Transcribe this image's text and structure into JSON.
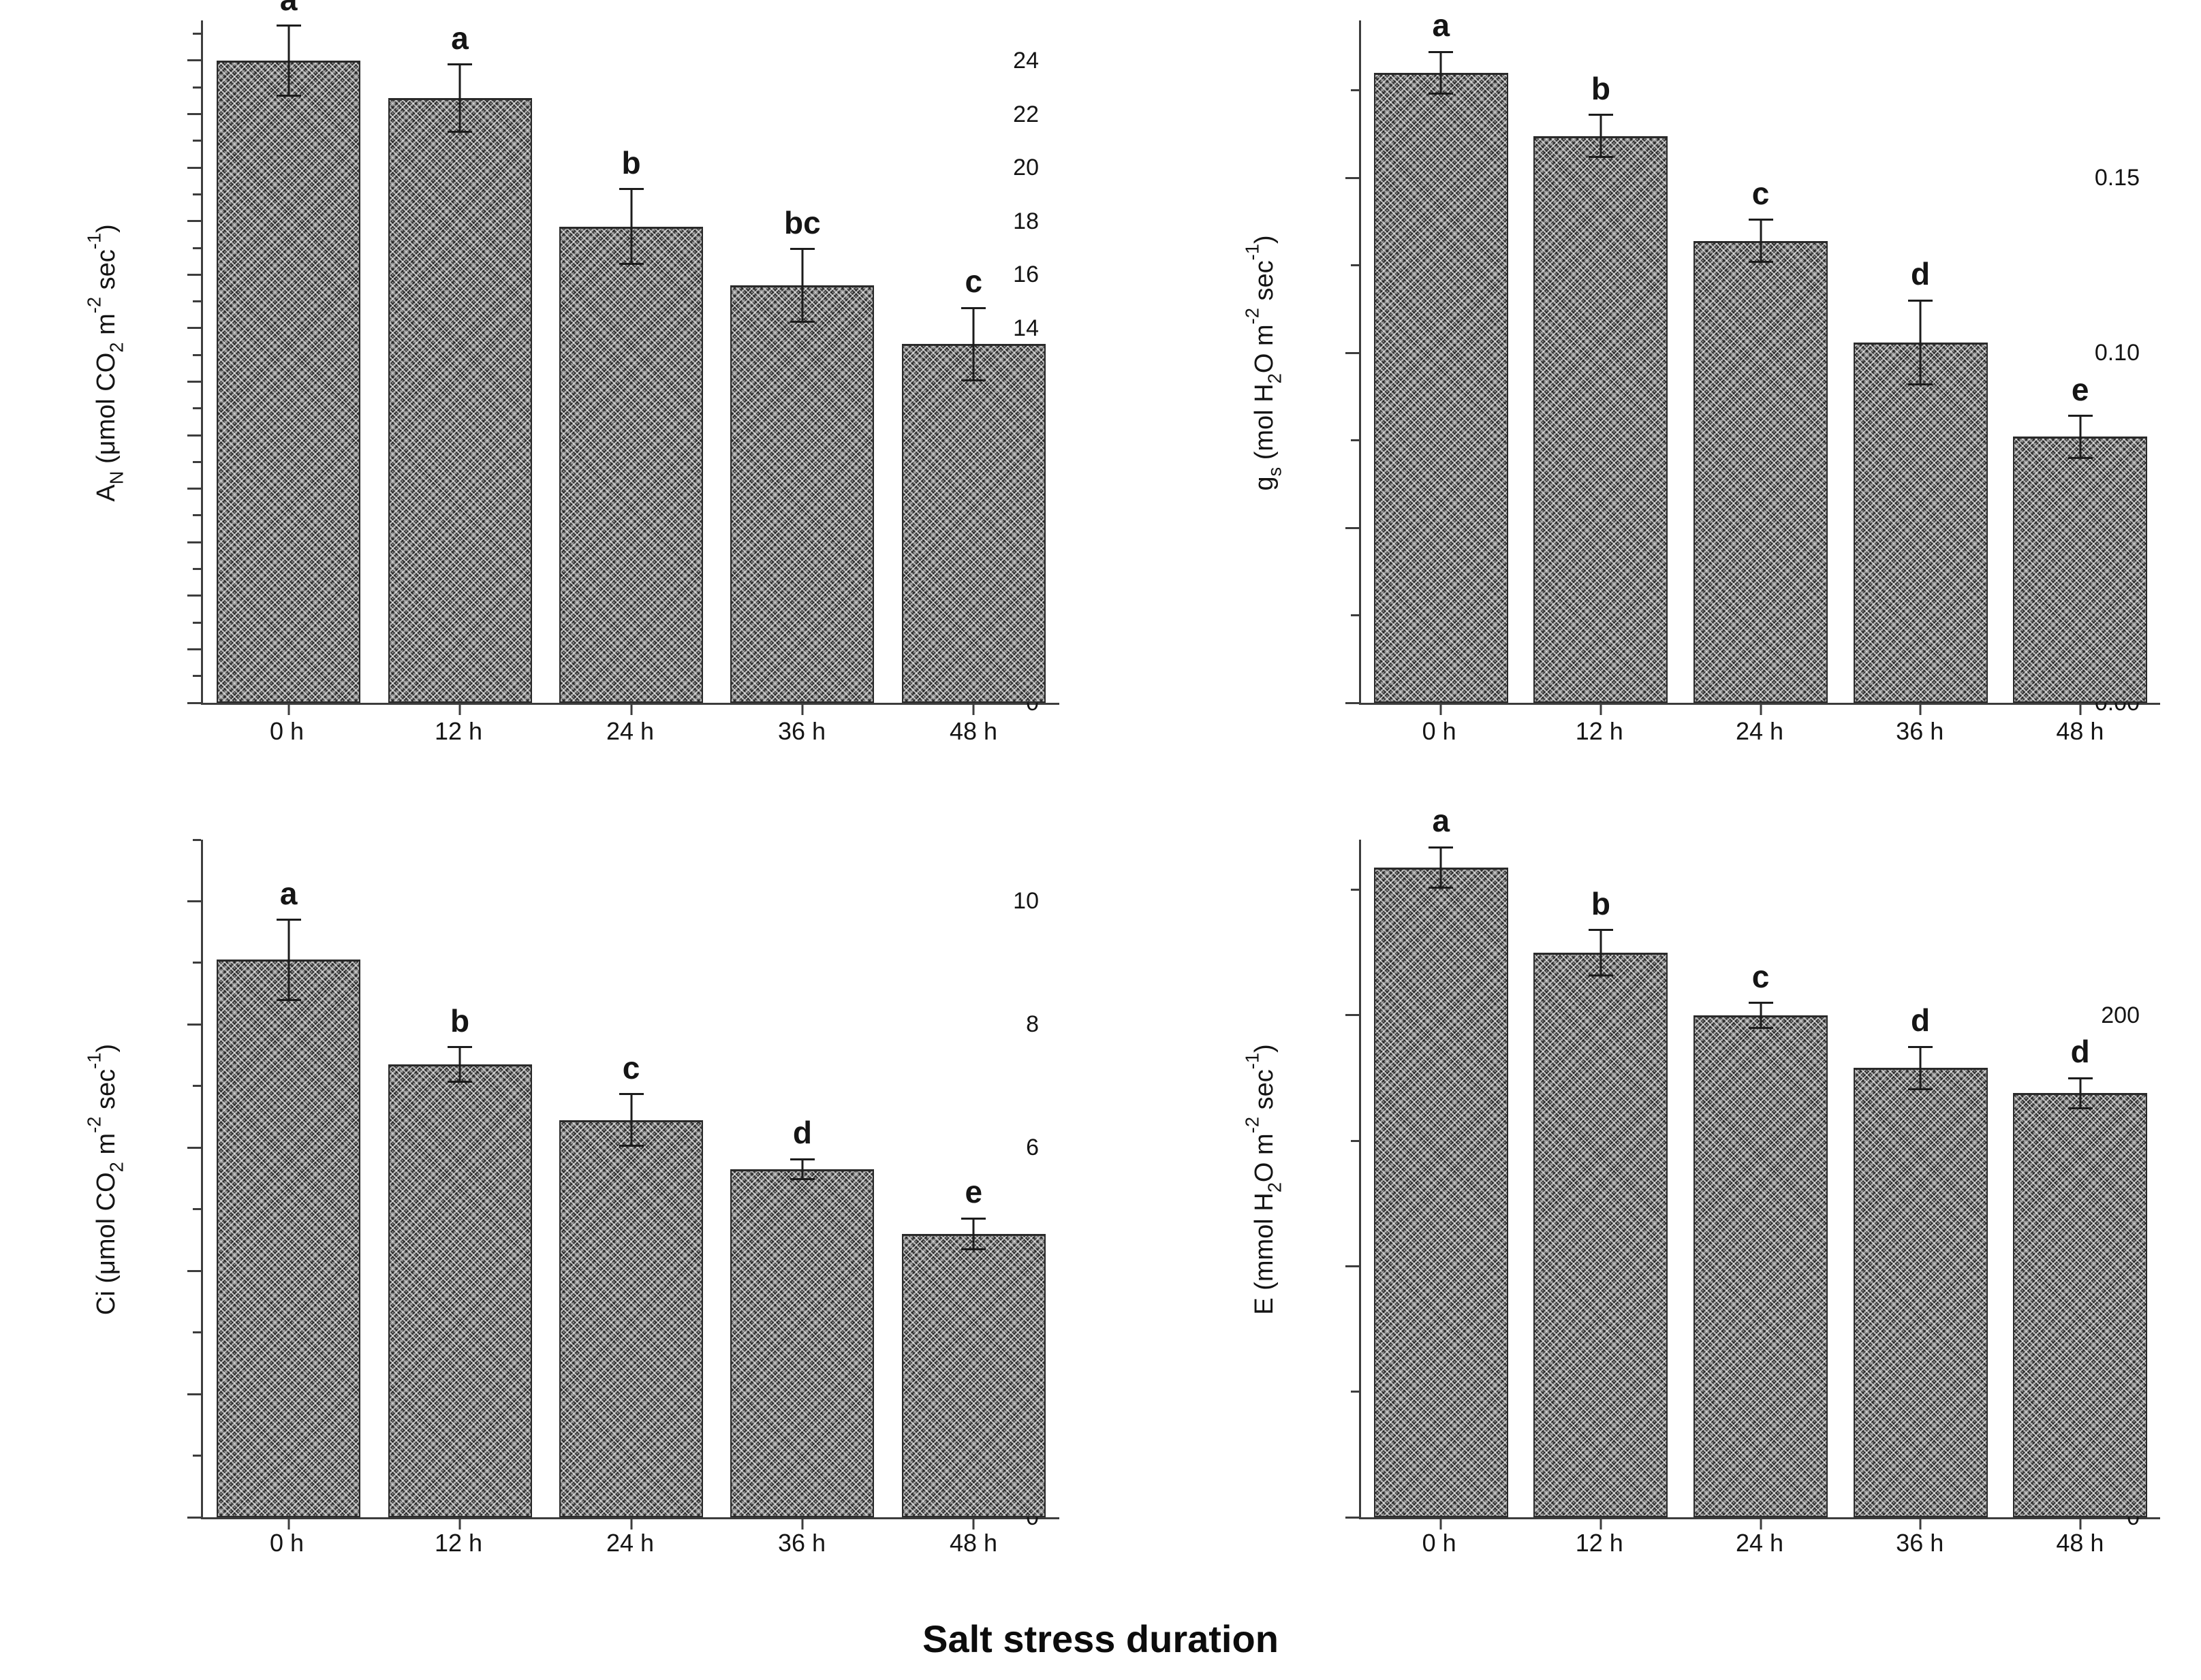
{
  "figure": {
    "xlabel": "Salt stress duration"
  },
  "colors": {
    "bar_fill": "#8e8e8e",
    "hatch": "#1e1e1e",
    "axis": "#3d3d3d",
    "text": "#141414"
  },
  "chart_data": [
    {
      "type": "bar",
      "panel": "top-left",
      "ylabel": "AN (umol CO2 m-2 sec-1)",
      "ylabel_segments": [
        {
          "t": "A"
        },
        {
          "t": "N",
          "sub": true
        },
        {
          "t": " (μmol CO"
        },
        {
          "t": "2",
          "sub": true
        },
        {
          "t": " m"
        },
        {
          "t": "-2",
          "sup": true
        },
        {
          "t": " sec"
        },
        {
          "t": "-1",
          "sup": true
        },
        {
          "t": ")"
        }
      ],
      "categories": [
        "0 h",
        "12 h",
        "24 h",
        "36 h",
        "48 h"
      ],
      "values": [
        24.0,
        22.6,
        17.8,
        15.6,
        13.4
      ],
      "errors": [
        1.3,
        1.25,
        1.4,
        1.35,
        1.35
      ],
      "sig_letters": [
        "a",
        "a",
        "b",
        "bc",
        "c"
      ],
      "axis": {
        "max": 25.5,
        "major": 2,
        "minor": 1,
        "label_max": 24,
        "decimals": 0
      },
      "grid": false,
      "legend": null
    },
    {
      "type": "bar",
      "panel": "top-right",
      "ylabel": "gs (mol H2O m-2 sec-1)",
      "ylabel_segments": [
        {
          "t": "g"
        },
        {
          "t": "s",
          "sub": true
        },
        {
          "t": " (mol H"
        },
        {
          "t": "2",
          "sub": true
        },
        {
          "t": "O m"
        },
        {
          "t": "-2",
          "sup": true
        },
        {
          "t": " sec"
        },
        {
          "t": "-1",
          "sup": true
        },
        {
          "t": ")"
        }
      ],
      "categories": [
        "0 h",
        "12 h",
        "24 h",
        "36 h",
        "48 h"
      ],
      "values": [
        0.18,
        0.162,
        0.132,
        0.103,
        0.076
      ],
      "errors": [
        0.006,
        0.006,
        0.006,
        0.012,
        0.006
      ],
      "sig_letters": [
        "a",
        "b",
        "c",
        "d",
        "e"
      ],
      "axis": {
        "max": 0.195,
        "major": 0.05,
        "minor": 0.025,
        "label_max": 0.15,
        "decimals": 2
      },
      "grid": false,
      "legend": null
    },
    {
      "type": "bar",
      "panel": "bottom-left",
      "ylabel": "Ci (umol CO2 m-2 sec-1)",
      "ylabel_segments": [
        {
          "t": "Ci (μmol CO"
        },
        {
          "t": "2",
          "sub": true
        },
        {
          "t": " m"
        },
        {
          "t": "-2",
          "sup": true
        },
        {
          "t": " sec"
        },
        {
          "t": "-1",
          "sup": true
        },
        {
          "t": ")"
        }
      ],
      "categories": [
        "0 h",
        "12 h",
        "24 h",
        "36 h",
        "48 h"
      ],
      "values": [
        9.05,
        7.35,
        6.45,
        5.65,
        4.6
      ],
      "errors": [
        0.65,
        0.28,
        0.42,
        0.16,
        0.25
      ],
      "sig_letters": [
        "a",
        "b",
        "c",
        "d",
        "e"
      ],
      "axis": {
        "max": 11.0,
        "major": 2,
        "minor": 1,
        "label_max": 10,
        "decimals": 0
      },
      "grid": false,
      "legend": null
    },
    {
      "type": "bar",
      "panel": "bottom-right",
      "ylabel": "E (mmol H2O m-2 sec-1)",
      "ylabel_segments": [
        {
          "t": "E (mmol H"
        },
        {
          "t": "2",
          "sub": true
        },
        {
          "t": "O m"
        },
        {
          "t": "-2",
          "sup": true
        },
        {
          "t": " sec"
        },
        {
          "t": "-1",
          "sup": true
        },
        {
          "t": ")"
        }
      ],
      "categories": [
        "0 h",
        "12 h",
        "24 h",
        "36 h",
        "48 h"
      ],
      "values": [
        259,
        225,
        200,
        179,
        169
      ],
      "errors": [
        8,
        9,
        5,
        8.5,
        6
      ],
      "sig_letters": [
        "a",
        "b",
        "c",
        "d",
        "d"
      ],
      "axis": {
        "max": 270,
        "major": 100,
        "minor": 50,
        "label_max": 200,
        "decimals": 0
      },
      "grid": false,
      "legend": null
    }
  ]
}
